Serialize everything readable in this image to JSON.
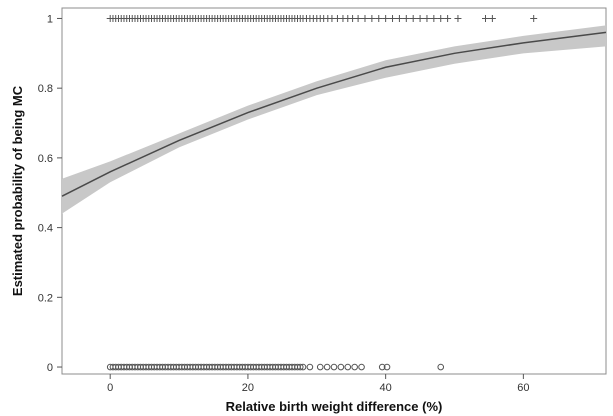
{
  "chart_data": {
    "type": "scatter",
    "xlabel": "Relative birth weight difference (%)",
    "ylabel": "Estimated probability of being MC",
    "xlim": [
      -7,
      72
    ],
    "ylim": [
      -0.02,
      1.03
    ],
    "grid": false,
    "legend": "none",
    "x_ticks": [
      {
        "value": 0,
        "label": "0"
      },
      {
        "value": 20,
        "label": "20"
      },
      {
        "value": 40,
        "label": "40"
      },
      {
        "value": 60,
        "label": "60"
      }
    ],
    "y_ticks": [
      {
        "value": 0,
        "label": "0"
      },
      {
        "value": 0.2,
        "label": "0.2"
      },
      {
        "value": 0.4,
        "label": "0.4"
      },
      {
        "value": 0.6,
        "label": "0.6"
      },
      {
        "value": 0.8,
        "label": "0.8"
      },
      {
        "value": 1,
        "label": "1"
      }
    ],
    "fit_curve": {
      "x": [
        -7,
        0,
        10,
        20,
        30,
        40,
        50,
        60,
        72
      ],
      "y": [
        0.49,
        0.56,
        0.65,
        0.73,
        0.8,
        0.86,
        0.9,
        0.93,
        0.96
      ],
      "ci_lower": [
        0.44,
        0.53,
        0.63,
        0.71,
        0.78,
        0.83,
        0.87,
        0.9,
        0.92
      ],
      "ci_upper": [
        0.54,
        0.59,
        0.67,
        0.75,
        0.82,
        0.88,
        0.92,
        0.95,
        0.98
      ]
    },
    "observed_mc": {
      "y": 1,
      "marker": "+",
      "x": [
        0,
        0.4,
        0.8,
        1.2,
        1.6,
        2,
        2.4,
        2.8,
        3.2,
        3.6,
        4,
        4.4,
        4.8,
        5.2,
        5.6,
        6,
        6.4,
        6.8,
        7.2,
        7.6,
        8,
        8.4,
        8.8,
        9.2,
        9.6,
        10,
        10.4,
        10.8,
        11.2,
        11.6,
        12,
        12.4,
        12.8,
        13.2,
        13.6,
        14,
        14.4,
        14.8,
        15.2,
        15.6,
        16,
        16.4,
        16.8,
        17.2,
        17.6,
        18,
        18.4,
        18.8,
        19.2,
        19.6,
        20,
        20.4,
        20.8,
        21.2,
        21.6,
        22,
        22.4,
        22.8,
        23.2,
        23.6,
        24,
        24.4,
        24.8,
        25.2,
        25.6,
        26,
        26.4,
        26.8,
        27.2,
        27.6,
        28,
        28.5,
        29,
        29.5,
        30,
        30.5,
        31,
        31.6,
        32.2,
        33,
        33.8,
        34.5,
        35.2,
        36,
        37,
        38,
        39,
        40,
        41,
        42,
        43,
        44,
        45,
        46,
        47,
        48,
        49,
        50.5,
        54.5,
        55.5,
        61.5
      ]
    },
    "observed_dc": {
      "y": 0,
      "marker": "o",
      "x": [
        0,
        0.4,
        0.8,
        1.2,
        1.6,
        2,
        2.4,
        2.8,
        3.2,
        3.6,
        4,
        4.4,
        4.8,
        5.2,
        5.6,
        6,
        6.4,
        6.8,
        7.2,
        7.6,
        8,
        8.4,
        8.8,
        9.2,
        9.6,
        10,
        10.4,
        10.8,
        11.2,
        11.6,
        12,
        12.4,
        12.8,
        13.2,
        13.6,
        14,
        14.4,
        14.8,
        15.2,
        15.6,
        16,
        16.4,
        16.8,
        17.2,
        17.6,
        18,
        18.4,
        18.8,
        19.2,
        19.6,
        20,
        20.4,
        20.8,
        21.2,
        21.6,
        22,
        22.4,
        22.8,
        23.2,
        23.6,
        24,
        24.4,
        24.8,
        25.2,
        25.6,
        26,
        26.4,
        26.8,
        27.2,
        27.6,
        28,
        29,
        30.5,
        31.5,
        32.5,
        33.5,
        34.5,
        35.5,
        36.5,
        39.5,
        40.2,
        48
      ]
    },
    "colors": {
      "curve": "#4a4a4a",
      "ci_band": "#c8c8c8",
      "markers": "#555555",
      "frame": "#8c8c8c"
    }
  }
}
